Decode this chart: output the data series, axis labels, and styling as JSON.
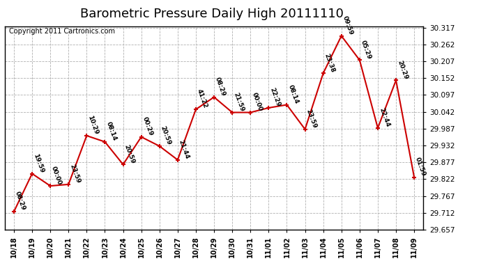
{
  "title": "Barometric Pressure Daily High 20111110",
  "copyright": "Copyright 2011 Cartronics.com",
  "x_labels": [
    "10/18",
    "10/19",
    "10/20",
    "10/21",
    "10/22",
    "10/23",
    "10/24",
    "10/25",
    "10/26",
    "10/27",
    "10/28",
    "10/29",
    "10/30",
    "10/31",
    "11/01",
    "11/02",
    "11/03",
    "11/04",
    "11/05",
    "11/06",
    "11/07",
    "11/08",
    "11/09"
  ],
  "y_values": [
    29.716,
    29.84,
    29.8,
    29.805,
    29.964,
    29.944,
    29.87,
    29.96,
    29.93,
    29.885,
    30.05,
    30.09,
    30.04,
    30.04,
    30.055,
    30.065,
    29.985,
    30.168,
    30.29,
    30.211,
    29.989,
    30.145,
    29.828
  ],
  "point_labels": [
    "08:29",
    "19:59",
    "00:00",
    "23:59",
    "10:29",
    "08:14",
    "20:59",
    "00:29",
    "20:59",
    "21:44",
    "41:22",
    "08:29",
    "21:59",
    "00:00",
    "22:29",
    "08:14",
    "23:59",
    "23:38",
    "09:59",
    "05:29",
    "22:44",
    "20:29",
    "01:59"
  ],
  "last_labels": [
    "00:00",
    "00:00"
  ],
  "line_color": "#cc0000",
  "marker_color": "#cc0000",
  "bg_color": "#ffffff",
  "grid_color": "#b0b0b0",
  "ylim_min": 29.657,
  "ylim_max": 30.322,
  "ytick_step": 0.055,
  "title_fontsize": 13,
  "copyright_fontsize": 7,
  "label_fontsize": 6.5,
  "xlabel_fontsize": 7,
  "ylabel_fontsize": 7.5
}
